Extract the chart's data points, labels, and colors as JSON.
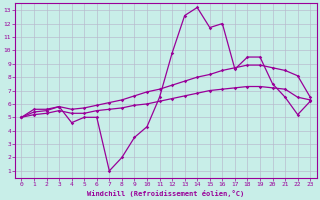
{
  "xlabel": "Windchill (Refroidissement éolien,°C)",
  "xlim": [
    -0.5,
    23.5
  ],
  "ylim": [
    0.5,
    13.5
  ],
  "xticks": [
    0,
    1,
    2,
    3,
    4,
    5,
    6,
    7,
    8,
    9,
    10,
    11,
    12,
    13,
    14,
    15,
    16,
    17,
    18,
    19,
    20,
    21,
    22,
    23
  ],
  "yticks": [
    1,
    2,
    3,
    4,
    5,
    6,
    7,
    8,
    9,
    10,
    11,
    12,
    13
  ],
  "background_color": "#c8eee8",
  "line_color": "#990099",
  "grid_color": "#b8b8cc",
  "line1_x": [
    0,
    1,
    2,
    3,
    4,
    5,
    6,
    7,
    8,
    9,
    10,
    11,
    12,
    13,
    14,
    15,
    16,
    17,
    18,
    19,
    20,
    21,
    22,
    23
  ],
  "line1_y": [
    5.0,
    5.6,
    5.6,
    5.8,
    4.6,
    5.0,
    5.0,
    1.0,
    2.0,
    3.5,
    4.3,
    6.5,
    9.8,
    12.6,
    13.2,
    11.7,
    12.0,
    8.6,
    9.5,
    9.5,
    7.5,
    6.5,
    5.2,
    6.2
  ],
  "line2_x": [
    0,
    1,
    2,
    3,
    4,
    5,
    6,
    7,
    8,
    9,
    10,
    11,
    12,
    13,
    14,
    15,
    16,
    17,
    18,
    19,
    20,
    21,
    22,
    23
  ],
  "line2_y": [
    5.0,
    5.4,
    5.5,
    5.8,
    5.6,
    5.7,
    5.9,
    6.1,
    6.3,
    6.6,
    6.9,
    7.1,
    7.4,
    7.7,
    8.0,
    8.2,
    8.5,
    8.7,
    8.9,
    8.9,
    8.7,
    8.5,
    8.1,
    6.5
  ],
  "line3_x": [
    0,
    1,
    2,
    3,
    4,
    5,
    6,
    7,
    8,
    9,
    10,
    11,
    12,
    13,
    14,
    15,
    16,
    17,
    18,
    19,
    20,
    21,
    22,
    23
  ],
  "line3_y": [
    5.0,
    5.2,
    5.3,
    5.5,
    5.3,
    5.3,
    5.5,
    5.6,
    5.7,
    5.9,
    6.0,
    6.2,
    6.4,
    6.6,
    6.8,
    7.0,
    7.1,
    7.2,
    7.3,
    7.3,
    7.2,
    7.1,
    6.5,
    6.3
  ]
}
